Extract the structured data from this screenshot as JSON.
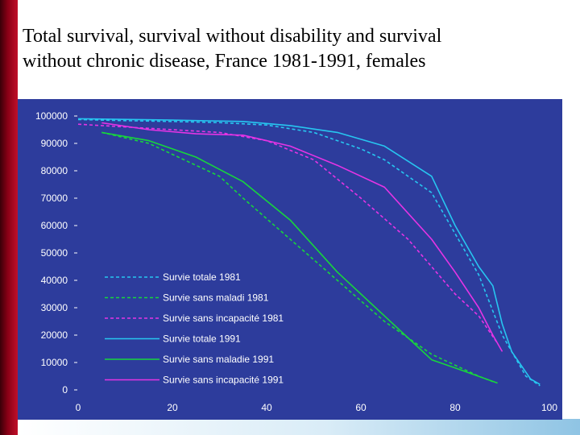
{
  "slide": {
    "title_line1": "Total survival, survival without disability and survival",
    "title_line2": "without chronic disease, France 1981-1991, females"
  },
  "colors": {
    "plot_background": "#2d3c9c",
    "cyan": "#27c6f0",
    "green": "#17d63c",
    "magenta": "#e534e5"
  },
  "chart_data": {
    "type": "line",
    "title": "",
    "xlabel": "",
    "ylabel": "",
    "xlim": [
      0,
      100
    ],
    "ylim": [
      0,
      100000
    ],
    "grid": false,
    "legend_position": "bottom-left",
    "y_tick_values": [
      0,
      10000,
      20000,
      30000,
      40000,
      50000,
      60000,
      70000,
      80000,
      90000,
      100000
    ],
    "y_tick_labels": [
      "0",
      "10000",
      "20000",
      "30000",
      "40000",
      "50000",
      "60000",
      "70000",
      "80000",
      "90000",
      "100000"
    ],
    "x_tick_values": [
      0,
      20,
      40,
      60,
      80,
      100
    ],
    "x_tick_labels": [
      "0",
      "20",
      "40",
      "60",
      "80",
      "100"
    ],
    "series": [
      {
        "name": "Survie totale 1981",
        "color": "#27c6f0",
        "style": "dashed",
        "points": [
          [
            0,
            98700
          ],
          [
            10,
            98300
          ],
          [
            20,
            98000
          ],
          [
            30,
            97600
          ],
          [
            40,
            96700
          ],
          [
            50,
            94000
          ],
          [
            60,
            88000
          ],
          [
            65,
            84000
          ],
          [
            75,
            72000
          ],
          [
            85,
            42000
          ],
          [
            90,
            20000
          ],
          [
            95,
            5000
          ],
          [
            98,
            1500
          ]
        ]
      },
      {
        "name": "Survie sans maladi 1981",
        "color": "#17d63c",
        "style": "dashed",
        "points": [
          [
            5,
            94000
          ],
          [
            10,
            92000
          ],
          [
            15,
            90000
          ],
          [
            20,
            86000
          ],
          [
            30,
            78000
          ],
          [
            35,
            70000
          ],
          [
            45,
            55000
          ],
          [
            55,
            40000
          ],
          [
            65,
            25000
          ],
          [
            75,
            13000
          ],
          [
            85,
            5000
          ],
          [
            88,
            3000
          ]
        ]
      },
      {
        "name": "Survie sans incapacité 1981",
        "color": "#e534e5",
        "style": "dashed",
        "points": [
          [
            0,
            97000
          ],
          [
            10,
            96000
          ],
          [
            20,
            95000
          ],
          [
            30,
            94000
          ],
          [
            40,
            91000
          ],
          [
            50,
            84000
          ],
          [
            60,
            70000
          ],
          [
            70,
            55000
          ],
          [
            80,
            35000
          ],
          [
            85,
            27000
          ],
          [
            89,
            17000
          ]
        ]
      },
      {
        "name": "Survie totale 1991",
        "color": "#27c6f0",
        "style": "solid",
        "points": [
          [
            0,
            99000
          ],
          [
            20,
            98500
          ],
          [
            35,
            98000
          ],
          [
            45,
            96500
          ],
          [
            55,
            94000
          ],
          [
            65,
            89000
          ],
          [
            75,
            78000
          ],
          [
            80,
            60000
          ],
          [
            85,
            45000
          ],
          [
            88,
            38000
          ],
          [
            90,
            24000
          ],
          [
            92,
            14000
          ],
          [
            96,
            4000
          ],
          [
            98,
            2000
          ]
        ]
      },
      {
        "name": "Survie sans maladie 1991",
        "color": "#17d63c",
        "style": "solid",
        "points": [
          [
            5,
            94000
          ],
          [
            15,
            91000
          ],
          [
            25,
            85000
          ],
          [
            35,
            76000
          ],
          [
            45,
            62000
          ],
          [
            55,
            43000
          ],
          [
            65,
            27000
          ],
          [
            75,
            11000
          ],
          [
            80,
            8000
          ],
          [
            89,
            2500
          ]
        ]
      },
      {
        "name": "Survie sans incapacité 1991",
        "color": "#e534e5",
        "style": "solid",
        "points": [
          [
            5,
            97500
          ],
          [
            15,
            95000
          ],
          [
            25,
            93500
          ],
          [
            35,
            93000
          ],
          [
            45,
            89000
          ],
          [
            55,
            82000
          ],
          [
            65,
            74000
          ],
          [
            75,
            55000
          ],
          [
            80,
            43000
          ],
          [
            85,
            30000
          ],
          [
            88,
            20000
          ],
          [
            90,
            14000
          ]
        ]
      }
    ]
  }
}
